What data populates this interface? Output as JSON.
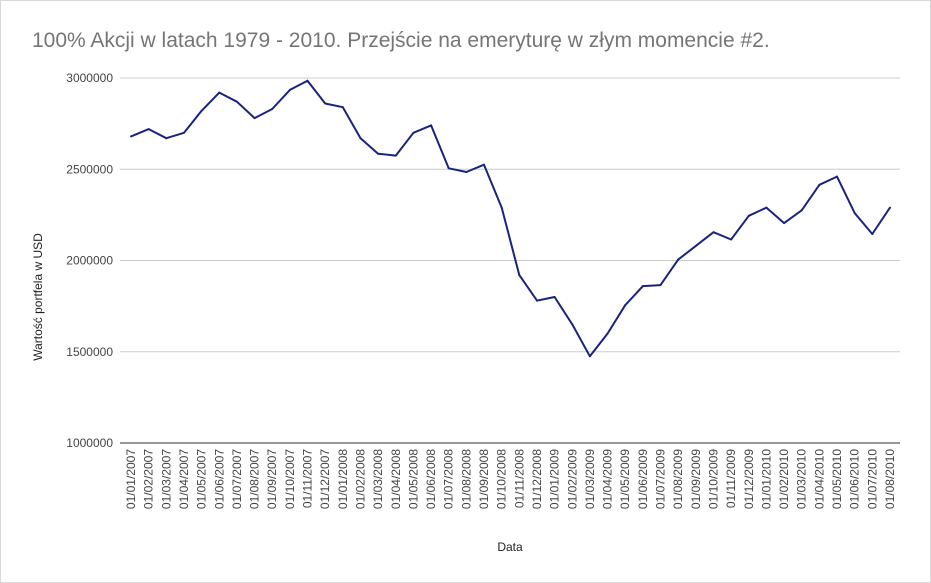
{
  "chart_data": {
    "type": "line",
    "title": "100% Akcji w latach 1979 - 2010. Przejście na emeryturę w złym momencie #2.",
    "xlabel": "Data",
    "ylabel": "Wartość portfela w USD",
    "ylim": [
      1000000,
      3000000
    ],
    "yticks": [
      "1000000",
      "1500000",
      "2000000",
      "2500000",
      "3000000"
    ],
    "grid": true,
    "x": [
      "01/01/2007",
      "01/02/2007",
      "01/03/2007",
      "01/04/2007",
      "01/05/2007",
      "01/06/2007",
      "01/07/2007",
      "01/08/2007",
      "01/09/2007",
      "01/10/2007",
      "01/11/2007",
      "01/12/2007",
      "01/01/2008",
      "01/02/2008",
      "01/03/2008",
      "01/04/2008",
      "01/05/2008",
      "01/06/2008",
      "01/07/2008",
      "01/08/2008",
      "01/09/2008",
      "01/10/2008",
      "01/11/2008",
      "01/12/2008",
      "01/01/2009",
      "01/02/2009",
      "01/03/2009",
      "01/04/2009",
      "01/05/2009",
      "01/06/2009",
      "01/07/2009",
      "01/08/2009",
      "01/09/2009",
      "01/10/2009",
      "01/11/2009",
      "01/12/2009",
      "01/01/2010",
      "01/02/2010",
      "01/03/2010",
      "01/04/2010",
      "01/05/2010",
      "01/06/2010",
      "01/07/2010",
      "01/08/2010"
    ],
    "series": [
      {
        "color": "#1a237e",
        "values": [
          2680000,
          2720000,
          2670000,
          2700000,
          2820000,
          2920000,
          2870000,
          2780000,
          2830000,
          2935000,
          2985000,
          2860000,
          2840000,
          2670000,
          2585000,
          2575000,
          2700000,
          2740000,
          2505000,
          2485000,
          2525000,
          2290000,
          1920000,
          1780000,
          1800000,
          1650000,
          1475000,
          1600000,
          1755000,
          1860000,
          1865000,
          2005000,
          2080000,
          2155000,
          2115000,
          2245000,
          2290000,
          2205000,
          2275000,
          2415000,
          2460000,
          2260000,
          2145000,
          2290000
        ]
      }
    ]
  }
}
